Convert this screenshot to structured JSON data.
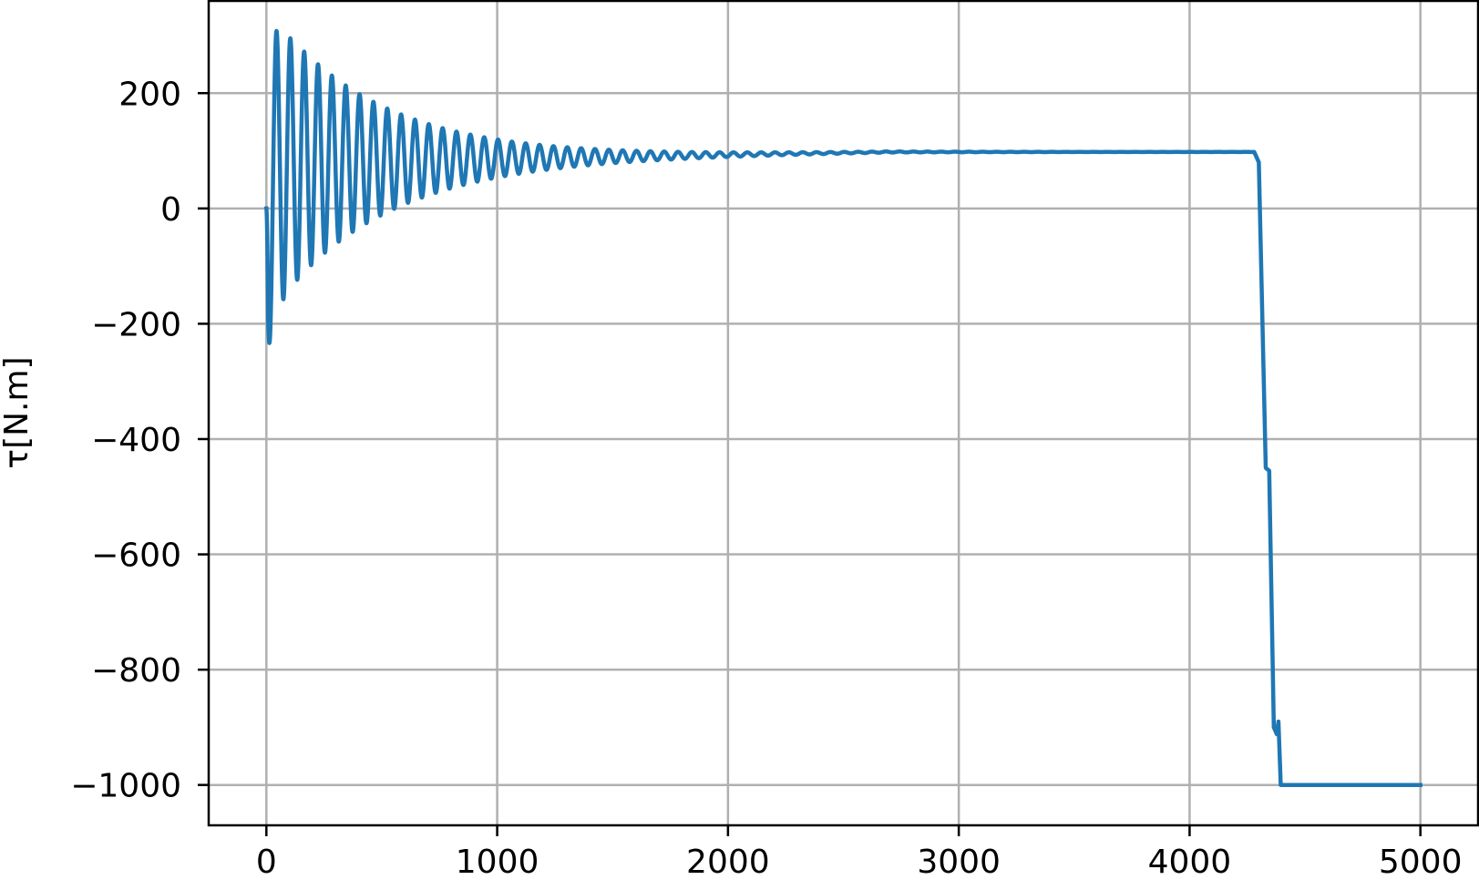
{
  "chart_data": {
    "type": "line",
    "title": "",
    "xlabel": "",
    "ylabel": "τ[N.m]",
    "xlim": [
      -250,
      5250
    ],
    "ylim": [
      -1070,
      360
    ],
    "grid": true,
    "legend": "none",
    "x_ticks": [
      0,
      1000,
      2000,
      3000,
      4000,
      5000
    ],
    "x_tick_labels": [
      "0",
      "1000",
      "2000",
      "3000",
      "4000",
      "5000"
    ],
    "y_ticks": [
      200,
      0,
      -200,
      -400,
      -600,
      -800,
      -1000
    ],
    "y_tick_labels": [
      "200",
      "0",
      "−200",
      "−400",
      "−600",
      "−800",
      "−1000"
    ],
    "series": [
      {
        "color": "#1f77b4",
        "signal": {
          "x_start": 0,
          "x_settle_end": 2700,
          "period": 60,
          "steady_start": 80,
          "steady_end": 98,
          "envelope": 270,
          "decay_rate": 0.0021,
          "osc_phase_shift": 0.12,
          "drop": [
            [
              4280,
              98
            ],
            [
              4300,
              80
            ],
            [
              4330,
              -450
            ],
            [
              4345,
              -455
            ],
            [
              4365,
              -900
            ],
            [
              4378,
              -912
            ],
            [
              4385,
              -890
            ],
            [
              4395,
              -1000
            ],
            [
              5000,
              -1000
            ]
          ]
        }
      }
    ]
  }
}
